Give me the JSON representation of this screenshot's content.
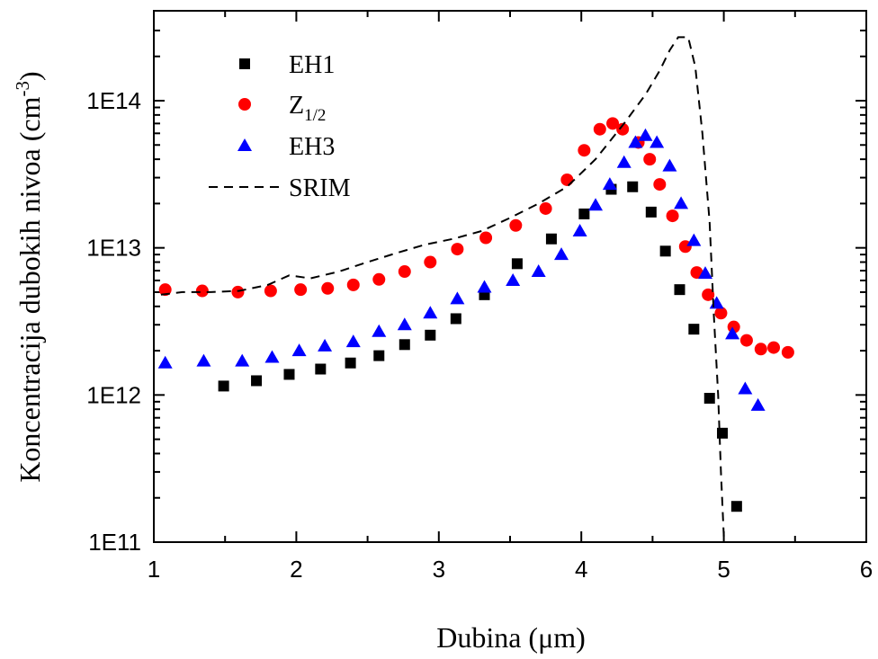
{
  "chart_data": {
    "type": "scatter",
    "xlabel": "Dubina (μm)",
    "ylabel_main": "Koncentracija dubokih nivoa (cm",
    "ylabel_sup": "-3",
    "ylabel_close": ")",
    "xlim": [
      1,
      6
    ],
    "ylim": [
      100000000000.0,
      350000000000000.0
    ],
    "yscale": "log",
    "x_ticks": [
      1,
      2,
      3,
      4,
      5,
      6
    ],
    "x_tick_labels": [
      "1",
      "2",
      "3",
      "4",
      "5",
      "6"
    ],
    "y_ticks": [
      100000000000.0,
      1000000000000.0,
      10000000000000.0,
      100000000000000.0
    ],
    "y_tick_labels": [
      "1E11",
      "1E12",
      "1E13",
      "1E14"
    ],
    "grid": false,
    "legend_position": "top-left",
    "series": [
      {
        "name": "EH1",
        "marker": "square",
        "color": "#000000",
        "x": [
          1.49,
          1.72,
          1.95,
          2.17,
          2.38,
          2.58,
          2.76,
          2.94,
          3.12,
          3.32,
          3.55,
          3.79,
          4.02,
          4.21,
          4.36,
          4.49,
          4.59,
          4.69,
          4.79,
          4.9,
          4.99,
          5.09
        ],
        "y": [
          1150000000000.0,
          1250000000000.0,
          1380000000000.0,
          1500000000000.0,
          1650000000000.0,
          1850000000000.0,
          2200000000000.0,
          2550000000000.0,
          3300000000000.0,
          4800000000000.0,
          7800000000000.0,
          11500000000000.0,
          17000000000000.0,
          25000000000000.0,
          26000000000000.0,
          17500000000000.0,
          9500000000000.0,
          5200000000000.0,
          2800000000000.0,
          950000000000.0,
          550000000000.0,
          175000000000.0
        ]
      },
      {
        "name": "Z",
        "name_sub": "1/2",
        "marker": "circle",
        "color": "#ff0000",
        "x": [
          1.08,
          1.34,
          1.59,
          1.82,
          2.03,
          2.22,
          2.4,
          2.58,
          2.76,
          2.94,
          3.13,
          3.33,
          3.54,
          3.75,
          3.9,
          4.02,
          4.13,
          4.22,
          4.29,
          4.4,
          4.48,
          4.55,
          4.64,
          4.73,
          4.81,
          4.89,
          4.98,
          5.07,
          5.16,
          5.26,
          5.35,
          5.45
        ],
        "y": [
          5200000000000.0,
          5100000000000.0,
          5000000000000.0,
          5100000000000.0,
          5200000000000.0,
          5300000000000.0,
          5600000000000.0,
          6100000000000.0,
          6900000000000.0,
          8000000000000.0,
          9800000000000.0,
          11700000000000.0,
          14200000000000.0,
          18500000000000.0,
          29000000000000.0,
          46000000000000.0,
          64000000000000.0,
          70000000000000.0,
          64000000000000.0,
          52000000000000.0,
          40000000000000.0,
          27000000000000.0,
          16500000000000.0,
          10200000000000.0,
          6800000000000.0,
          4800000000000.0,
          3600000000000.0,
          2900000000000.0,
          2350000000000.0,
          2050000000000.0,
          2100000000000.0,
          1950000000000.0
        ]
      },
      {
        "name": "EH3",
        "marker": "triangle",
        "color": "#0000ff",
        "x": [
          1.08,
          1.35,
          1.62,
          1.83,
          2.02,
          2.2,
          2.4,
          2.58,
          2.76,
          2.94,
          3.13,
          3.32,
          3.52,
          3.7,
          3.86,
          3.99,
          4.1,
          4.2,
          4.3,
          4.38,
          4.45,
          4.53,
          4.62,
          4.7,
          4.79,
          4.87,
          4.95,
          5.06,
          5.15,
          5.24
        ],
        "y": [
          1650000000000.0,
          1700000000000.0,
          1700000000000.0,
          1800000000000.0,
          2000000000000.0,
          2150000000000.0,
          2300000000000.0,
          2700000000000.0,
          3000000000000.0,
          3600000000000.0,
          4500000000000.0,
          5400000000000.0,
          6000000000000.0,
          6900000000000.0,
          9000000000000.0,
          13000000000000.0,
          19500000000000.0,
          27000000000000.0,
          38000000000000.0,
          52000000000000.0,
          58000000000000.0,
          52000000000000.0,
          36000000000000.0,
          20000000000000.0,
          11200000000000.0,
          6700000000000.0,
          4200000000000.0,
          2600000000000.0,
          1100000000000.0,
          850000000000.0
        ]
      },
      {
        "name": "SRIM",
        "marker": "dashed-line",
        "color": "#000000",
        "x": [
          1.05,
          1.2,
          1.4,
          1.6,
          1.8,
          1.95,
          2.1,
          2.3,
          2.5,
          2.7,
          2.9,
          3.1,
          3.3,
          3.5,
          3.7,
          3.9,
          4.1,
          4.3,
          4.45,
          4.55,
          4.62,
          4.68,
          4.75,
          4.8,
          4.85,
          4.9,
          4.93,
          4.96,
          4.98,
          5.0,
          5.02
        ],
        "y": [
          4800000000000.0,
          5000000000000.0,
          5000000000000.0,
          5100000000000.0,
          5600000000000.0,
          6500000000000.0,
          6200000000000.0,
          6900000000000.0,
          8000000000000.0,
          9200000000000.0,
          10500000000000.0,
          11500000000000.0,
          13000000000000.0,
          16000000000000.0,
          20000000000000.0,
          26000000000000.0,
          40000000000000.0,
          70000000000000.0,
          110000000000000.0,
          160000000000000.0,
          220000000000000.0,
          270000000000000.0,
          270000000000000.0,
          170000000000000.0,
          60000000000000.0,
          15000000000000.0,
          3500000000000.0,
          1000000000000.0,
          300000000000.0,
          110000000000.0,
          80000000000.0
        ]
      }
    ]
  }
}
